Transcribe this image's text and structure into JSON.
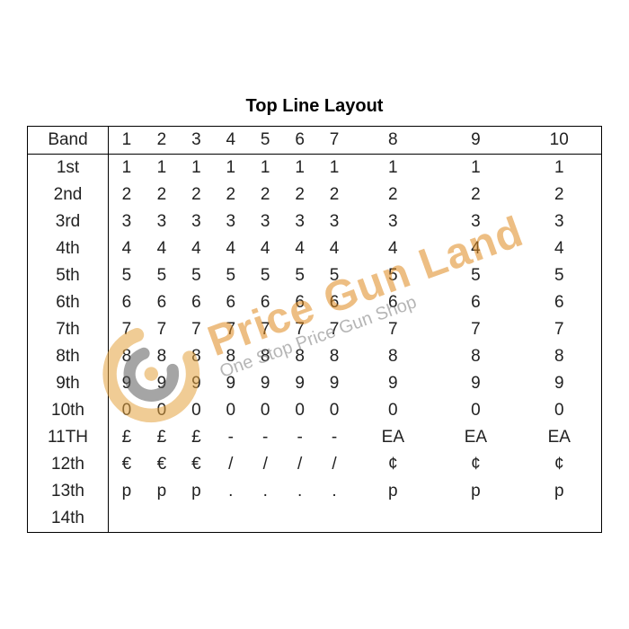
{
  "title": "Top Line Layout",
  "colors": {
    "border": "#000000",
    "text": "#222222",
    "background": "#ffffff",
    "wm_brand": "#e08a1e",
    "wm_tag": "#7a7a7a",
    "wm_logo_outer": "#e5a33f",
    "wm_logo_inner": "#5c5c5c"
  },
  "table": {
    "band_header": "Band",
    "col_headers": [
      "1",
      "2",
      "3",
      "4",
      "5",
      "6",
      "7",
      "8",
      "9",
      "10"
    ],
    "rows": [
      {
        "band": "1st",
        "cells": [
          "1",
          "1",
          "1",
          "1",
          "1",
          "1",
          "1",
          "1",
          "1",
          "1"
        ]
      },
      {
        "band": "2nd",
        "cells": [
          "2",
          "2",
          "2",
          "2",
          "2",
          "2",
          "2",
          "2",
          "2",
          "2"
        ]
      },
      {
        "band": "3rd",
        "cells": [
          "3",
          "3",
          "3",
          "3",
          "3",
          "3",
          "3",
          "3",
          "3",
          "3"
        ]
      },
      {
        "band": "4th",
        "cells": [
          "4",
          "4",
          "4",
          "4",
          "4",
          "4",
          "4",
          "4",
          "4",
          "4"
        ]
      },
      {
        "band": "5th",
        "cells": [
          "5",
          "5",
          "5",
          "5",
          "5",
          "5",
          "5",
          "5",
          "5",
          "5"
        ]
      },
      {
        "band": "6th",
        "cells": [
          "6",
          "6",
          "6",
          "6",
          "6",
          "6",
          "6",
          "6",
          "6",
          "6"
        ]
      },
      {
        "band": "7th",
        "cells": [
          "7",
          "7",
          "7",
          "7",
          "7",
          "7",
          "7",
          "7",
          "7",
          "7"
        ]
      },
      {
        "band": "8th",
        "cells": [
          "8",
          "8",
          "8",
          "8",
          "8",
          "8",
          "8",
          "8",
          "8",
          "8"
        ]
      },
      {
        "band": "9th",
        "cells": [
          "9",
          "9",
          "9",
          "9",
          "9",
          "9",
          "9",
          "9",
          "9",
          "9"
        ]
      },
      {
        "band": "10th",
        "cells": [
          "0",
          "0",
          "0",
          "0",
          "0",
          "0",
          "0",
          "0",
          "0",
          "0"
        ]
      },
      {
        "band": "11TH",
        "cells": [
          "£",
          "£",
          "£",
          "-",
          "-",
          "-",
          "-",
          "EA",
          "EA",
          "EA"
        ]
      },
      {
        "band": "12th",
        "cells": [
          "€",
          "€",
          "€",
          "/",
          "/",
          "/",
          "/",
          "¢",
          "¢",
          "¢"
        ]
      },
      {
        "band": "13th",
        "cells": [
          "p",
          "p",
          "p",
          ".",
          ".",
          ".",
          ".",
          "p",
          "p",
          "p"
        ]
      },
      {
        "band": "14th",
        "cells": [
          "",
          "",
          "",
          "",
          "",
          "",
          "",
          "",
          "",
          ""
        ]
      }
    ]
  },
  "watermark": {
    "brand": "Price Gun Land",
    "tagline": "One Stop Price Gun Shop",
    "rotation_deg": -20
  },
  "typography": {
    "title_fontsize": 20,
    "cell_fontsize": 19,
    "wm_brand_fontsize": 48,
    "wm_tag_fontsize": 20
  }
}
